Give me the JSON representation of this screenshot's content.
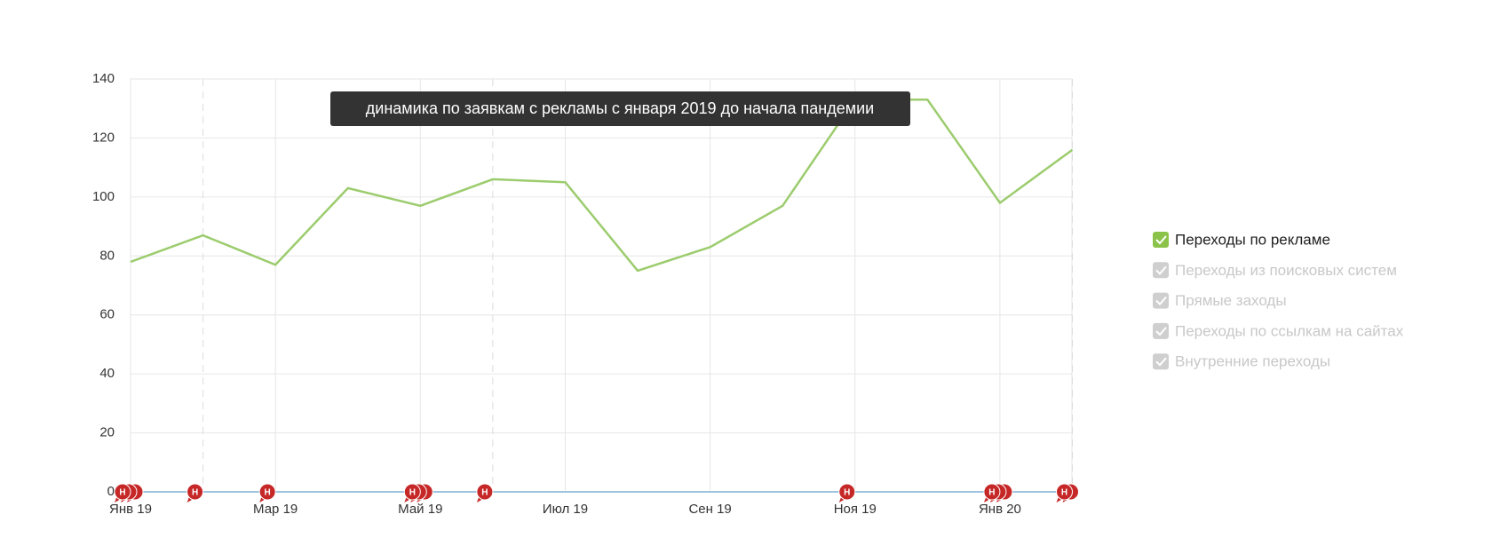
{
  "chart_data": {
    "type": "line",
    "annotation": "динамика по заявкам с рекламы с января 2019 до начала пандемии",
    "categories": [
      "Янв 19",
      null,
      "Мар 19",
      null,
      "Май 19",
      null,
      "Июл 19",
      null,
      "Сен 19",
      null,
      "Ноя 19",
      null,
      "Янв 20",
      null
    ],
    "series": [
      {
        "name": "Переходы по рекламе",
        "color": "#9ccc6e",
        "values": [
          78,
          87,
          77,
          103,
          97,
          106,
          105,
          75,
          83,
          97,
          133,
          133,
          98,
          116
        ]
      }
    ],
    "legend": [
      {
        "name": "Переходы по рекламе",
        "checked": true,
        "color": "#8bc34a"
      },
      {
        "name": "Переходы из поисковых систем",
        "checked": false,
        "color": "#cfcfcf"
      },
      {
        "name": "Прямые заходы",
        "checked": false,
        "color": "#cfcfcf"
      },
      {
        "name": "Переходы по ссылкам на сайтах",
        "checked": false,
        "color": "#cfcfcf"
      },
      {
        "name": "Внутренние переходы",
        "checked": false,
        "color": "#cfcfcf"
      }
    ],
    "notes": [
      {
        "at": 0,
        "count": 3,
        "label": "Н"
      },
      {
        "at": 1,
        "count": 1,
        "label": "Н"
      },
      {
        "at": 2,
        "count": 1,
        "label": "Н"
      },
      {
        "at": 4,
        "count": 3,
        "label": "Н"
      },
      {
        "at": 5,
        "count": 1,
        "label": "Н"
      },
      {
        "at": 10,
        "count": 1,
        "label": "Н"
      },
      {
        "at": 12,
        "count": 3,
        "label": "Н"
      },
      {
        "at": 13,
        "count": 2,
        "label": "Н"
      }
    ],
    "ylim": [
      0,
      140
    ],
    "yticks": [
      0,
      20,
      40,
      60,
      80,
      100,
      120,
      140
    ],
    "grid": true
  }
}
